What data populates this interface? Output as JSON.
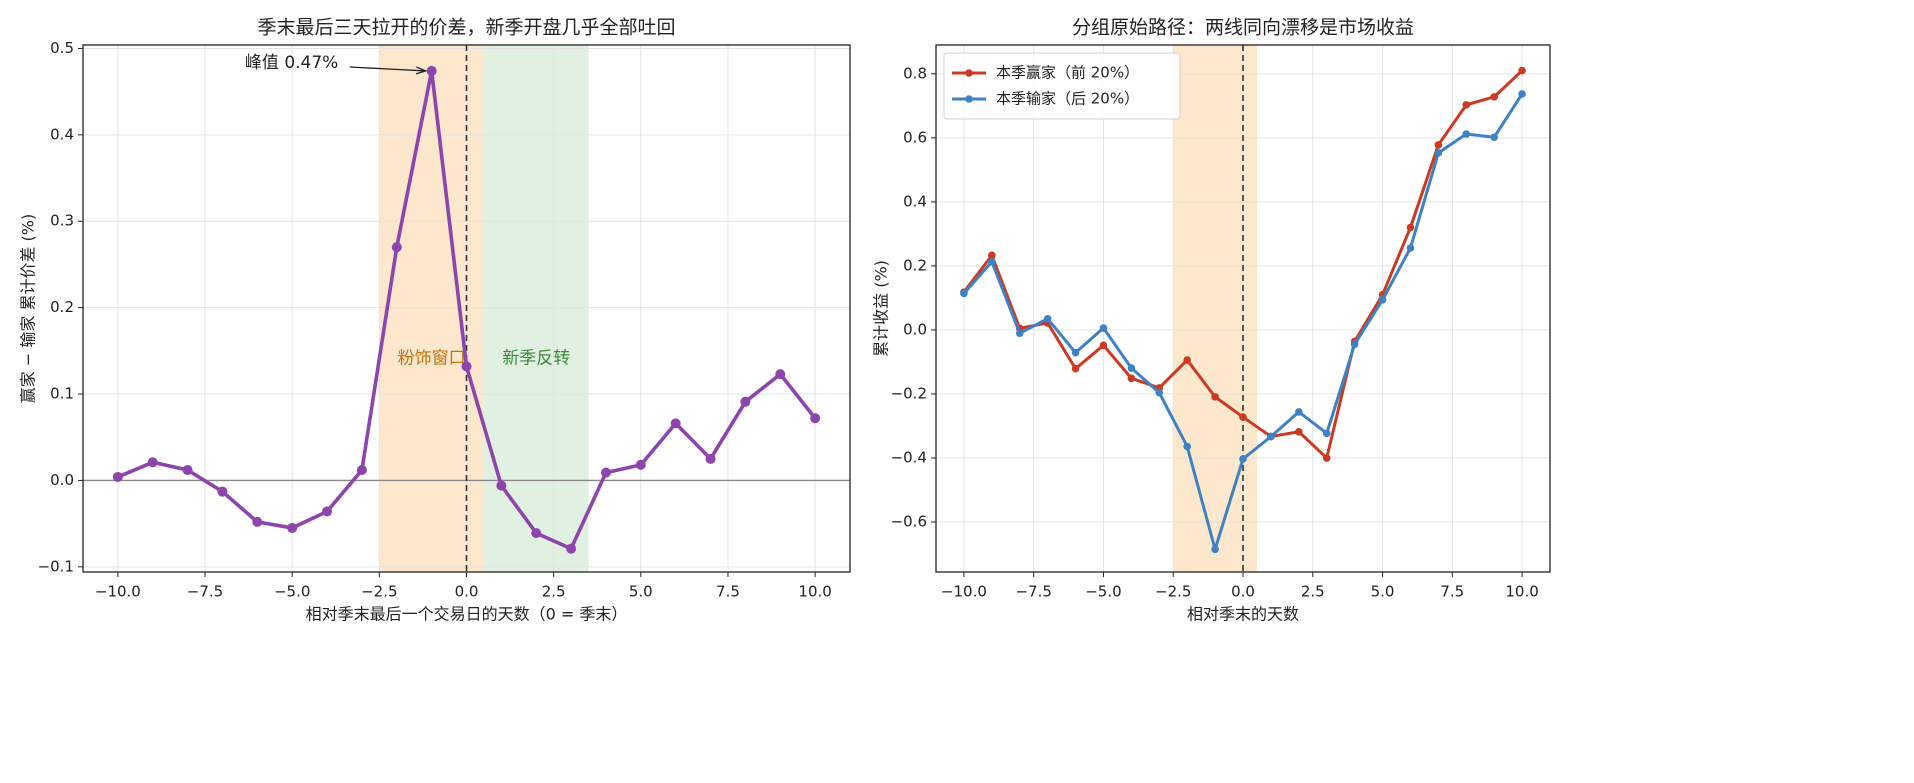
{
  "chart_data": [
    {
      "type": "line",
      "title": "季末最后三天拉开的价差，新季开盘几乎全部吐回",
      "xlabel": "相对季末最后一个交易日的天数（0 = 季末）",
      "ylabel": "赢家 − 输家 累计价差 (%)",
      "x": [
        -10,
        -9,
        -8,
        -7,
        -6,
        -5,
        -4,
        -3,
        -2,
        -1,
        0,
        1,
        2,
        3,
        4,
        5,
        6,
        7,
        8,
        9,
        10
      ],
      "series": [
        {
          "name": "赢家 − 输家",
          "color": "#8e44ad",
          "values": [
            0.004,
            0.021,
            0.012,
            -0.013,
            -0.048,
            -0.055,
            -0.036,
            0.012,
            0.27,
            0.474,
            0.132,
            -0.006,
            -0.061,
            -0.079,
            0.009,
            0.018,
            0.066,
            0.025,
            0.091,
            0.123,
            0.072
          ]
        }
      ],
      "xlim": [
        -11,
        11
      ],
      "ylim": [
        -0.106,
        0.504
      ],
      "xticks": [
        {
          "value": -10,
          "label": "−10.0"
        },
        {
          "value": -7.5,
          "label": "−7.5"
        },
        {
          "value": -5,
          "label": "−5.0"
        },
        {
          "value": -2.5,
          "label": "−2.5"
        },
        {
          "value": 0,
          "label": "0.0"
        },
        {
          "value": 2.5,
          "label": "2.5"
        },
        {
          "value": 5,
          "label": "5.0"
        },
        {
          "value": 7.5,
          "label": "7.5"
        },
        {
          "value": 10,
          "label": "10.0"
        }
      ],
      "yticks": [
        {
          "value": -0.1,
          "label": "−0.1"
        },
        {
          "value": 0,
          "label": "0.0"
        },
        0.1,
        0.2,
        0.3,
        0.4,
        0.5
      ],
      "grid": true,
      "legend": false,
      "vline": 0,
      "hline": 0,
      "spans": [
        {
          "start": -2.5,
          "end": 0.5,
          "color": "#fde3c4",
          "label": "粉饰窗口",
          "label_color": "#c0730f"
        },
        {
          "start": 0.5,
          "end": 3.5,
          "color": "#dcefdc",
          "label": "新季反转",
          "label_color": "#3b8a3b"
        }
      ],
      "annotations": [
        {
          "text": "峰值 0.47%",
          "x": -1,
          "y": 0.474
        }
      ]
    },
    {
      "type": "line",
      "title": "分组原始路径：两线同向漂移是市场收益",
      "xlabel": "相对季末的天数",
      "ylabel": "累计收益 (%)",
      "x": [
        -10,
        -9,
        -8,
        -7,
        -6,
        -5,
        -4,
        -3,
        -2,
        -1,
        0,
        1,
        2,
        3,
        4,
        5,
        6,
        7,
        8,
        9,
        10
      ],
      "series": [
        {
          "name": "本季赢家（前 20%）",
          "color": "#cc3a22",
          "values": [
            0.118,
            0.233,
            0.005,
            0.022,
            -0.121,
            -0.048,
            -0.151,
            -0.181,
            -0.094,
            -0.209,
            -0.272,
            -0.333,
            -0.318,
            -0.4,
            -0.036,
            0.11,
            0.32,
            0.578,
            0.703,
            0.728,
            0.81
          ]
        },
        {
          "name": "本季输家（后 20%）",
          "color": "#3d82c4",
          "values": [
            0.114,
            0.213,
            -0.01,
            0.035,
            -0.071,
            0.006,
            -0.119,
            -0.196,
            -0.364,
            -0.685,
            -0.403,
            -0.333,
            -0.256,
            -0.323,
            -0.045,
            0.094,
            0.256,
            0.553,
            0.612,
            0.602,
            0.737
          ]
        }
      ],
      "xlim": [
        -11,
        11
      ],
      "ylim": [
        -0.756,
        0.89
      ],
      "xticks": [
        {
          "value": -10,
          "label": "−10.0"
        },
        {
          "value": -7.5,
          "label": "−7.5"
        },
        {
          "value": -5,
          "label": "−5.0"
        },
        {
          "value": -2.5,
          "label": "−2.5"
        },
        {
          "value": 0,
          "label": "0.0"
        },
        {
          "value": 2.5,
          "label": "2.5"
        },
        {
          "value": 5,
          "label": "5.0"
        },
        {
          "value": 7.5,
          "label": "7.5"
        },
        {
          "value": 10,
          "label": "10.0"
        }
      ],
      "yticks": [
        {
          "value": -0.6,
          "label": "−0.6"
        },
        {
          "value": -0.4,
          "label": "−0.4"
        },
        {
          "value": -0.2,
          "label": "−0.2"
        },
        {
          "value": 0,
          "label": "0.0"
        },
        0.2,
        0.4,
        0.6,
        0.8
      ],
      "grid": true,
      "legend": "upper left",
      "vline": 0,
      "spans": [
        {
          "start": -2.5,
          "end": 0.5,
          "color": "#fde3c4"
        }
      ]
    }
  ]
}
